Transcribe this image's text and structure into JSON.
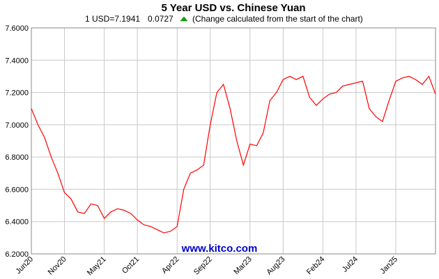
{
  "chart_data": {
    "type": "line",
    "title": "5 Year USD vs. Chinese Yuan",
    "rate": "1 USD=7.1941",
    "change": "0.0727",
    "note": "(Change calculated from the start of the chart)",
    "watermark": "www.kitco.com",
    "categories": [
      "Jun20",
      null,
      null,
      null,
      null,
      "Nov20",
      null,
      null,
      null,
      null,
      null,
      "May21",
      null,
      null,
      null,
      null,
      "Oct21",
      null,
      null,
      null,
      null,
      null,
      "Apr22",
      null,
      null,
      null,
      null,
      "Sep22",
      null,
      null,
      null,
      null,
      null,
      "Mar23",
      null,
      null,
      null,
      null,
      "Aug23",
      null,
      null,
      null,
      null,
      null,
      "Feb24",
      null,
      null,
      null,
      null,
      "Jul24",
      null,
      null,
      null,
      null,
      null,
      "Jan25",
      null,
      null,
      null,
      null,
      null,
      null
    ],
    "series": [
      {
        "color": "#ff0000",
        "values": [
          7.1,
          7.0,
          6.92,
          6.8,
          6.7,
          6.58,
          6.54,
          6.46,
          6.45,
          6.51,
          6.5,
          6.42,
          6.46,
          6.48,
          6.47,
          6.45,
          6.41,
          6.38,
          6.37,
          6.35,
          6.33,
          6.34,
          6.37,
          6.6,
          6.7,
          6.72,
          6.75,
          7.0,
          7.2,
          7.25,
          7.1,
          6.9,
          6.75,
          6.88,
          6.87,
          6.95,
          7.15,
          7.2,
          7.28,
          7.3,
          7.28,
          7.3,
          7.17,
          7.12,
          7.16,
          7.19,
          7.2,
          7.24,
          7.25,
          7.26,
          7.27,
          7.1,
          7.05,
          7.02,
          7.15,
          7.27,
          7.29,
          7.3,
          7.28,
          7.25,
          7.3,
          7.19
        ]
      }
    ],
    "ylim": [
      6.2,
      7.6
    ],
    "yticks": [
      {
        "value": 6.2,
        "label": "6.2000"
      },
      {
        "value": 6.4,
        "label": "6.4000"
      },
      {
        "value": 6.6,
        "label": "6.6000"
      },
      {
        "value": 6.8,
        "label": "6.8000"
      },
      {
        "value": 7.0,
        "label": "7.0000"
      },
      {
        "value": 7.2,
        "label": "7.2000"
      },
      {
        "value": 7.4,
        "label": "7.4000"
      },
      {
        "value": 7.6,
        "label": "7.6000"
      }
    ],
    "grid": true
  }
}
